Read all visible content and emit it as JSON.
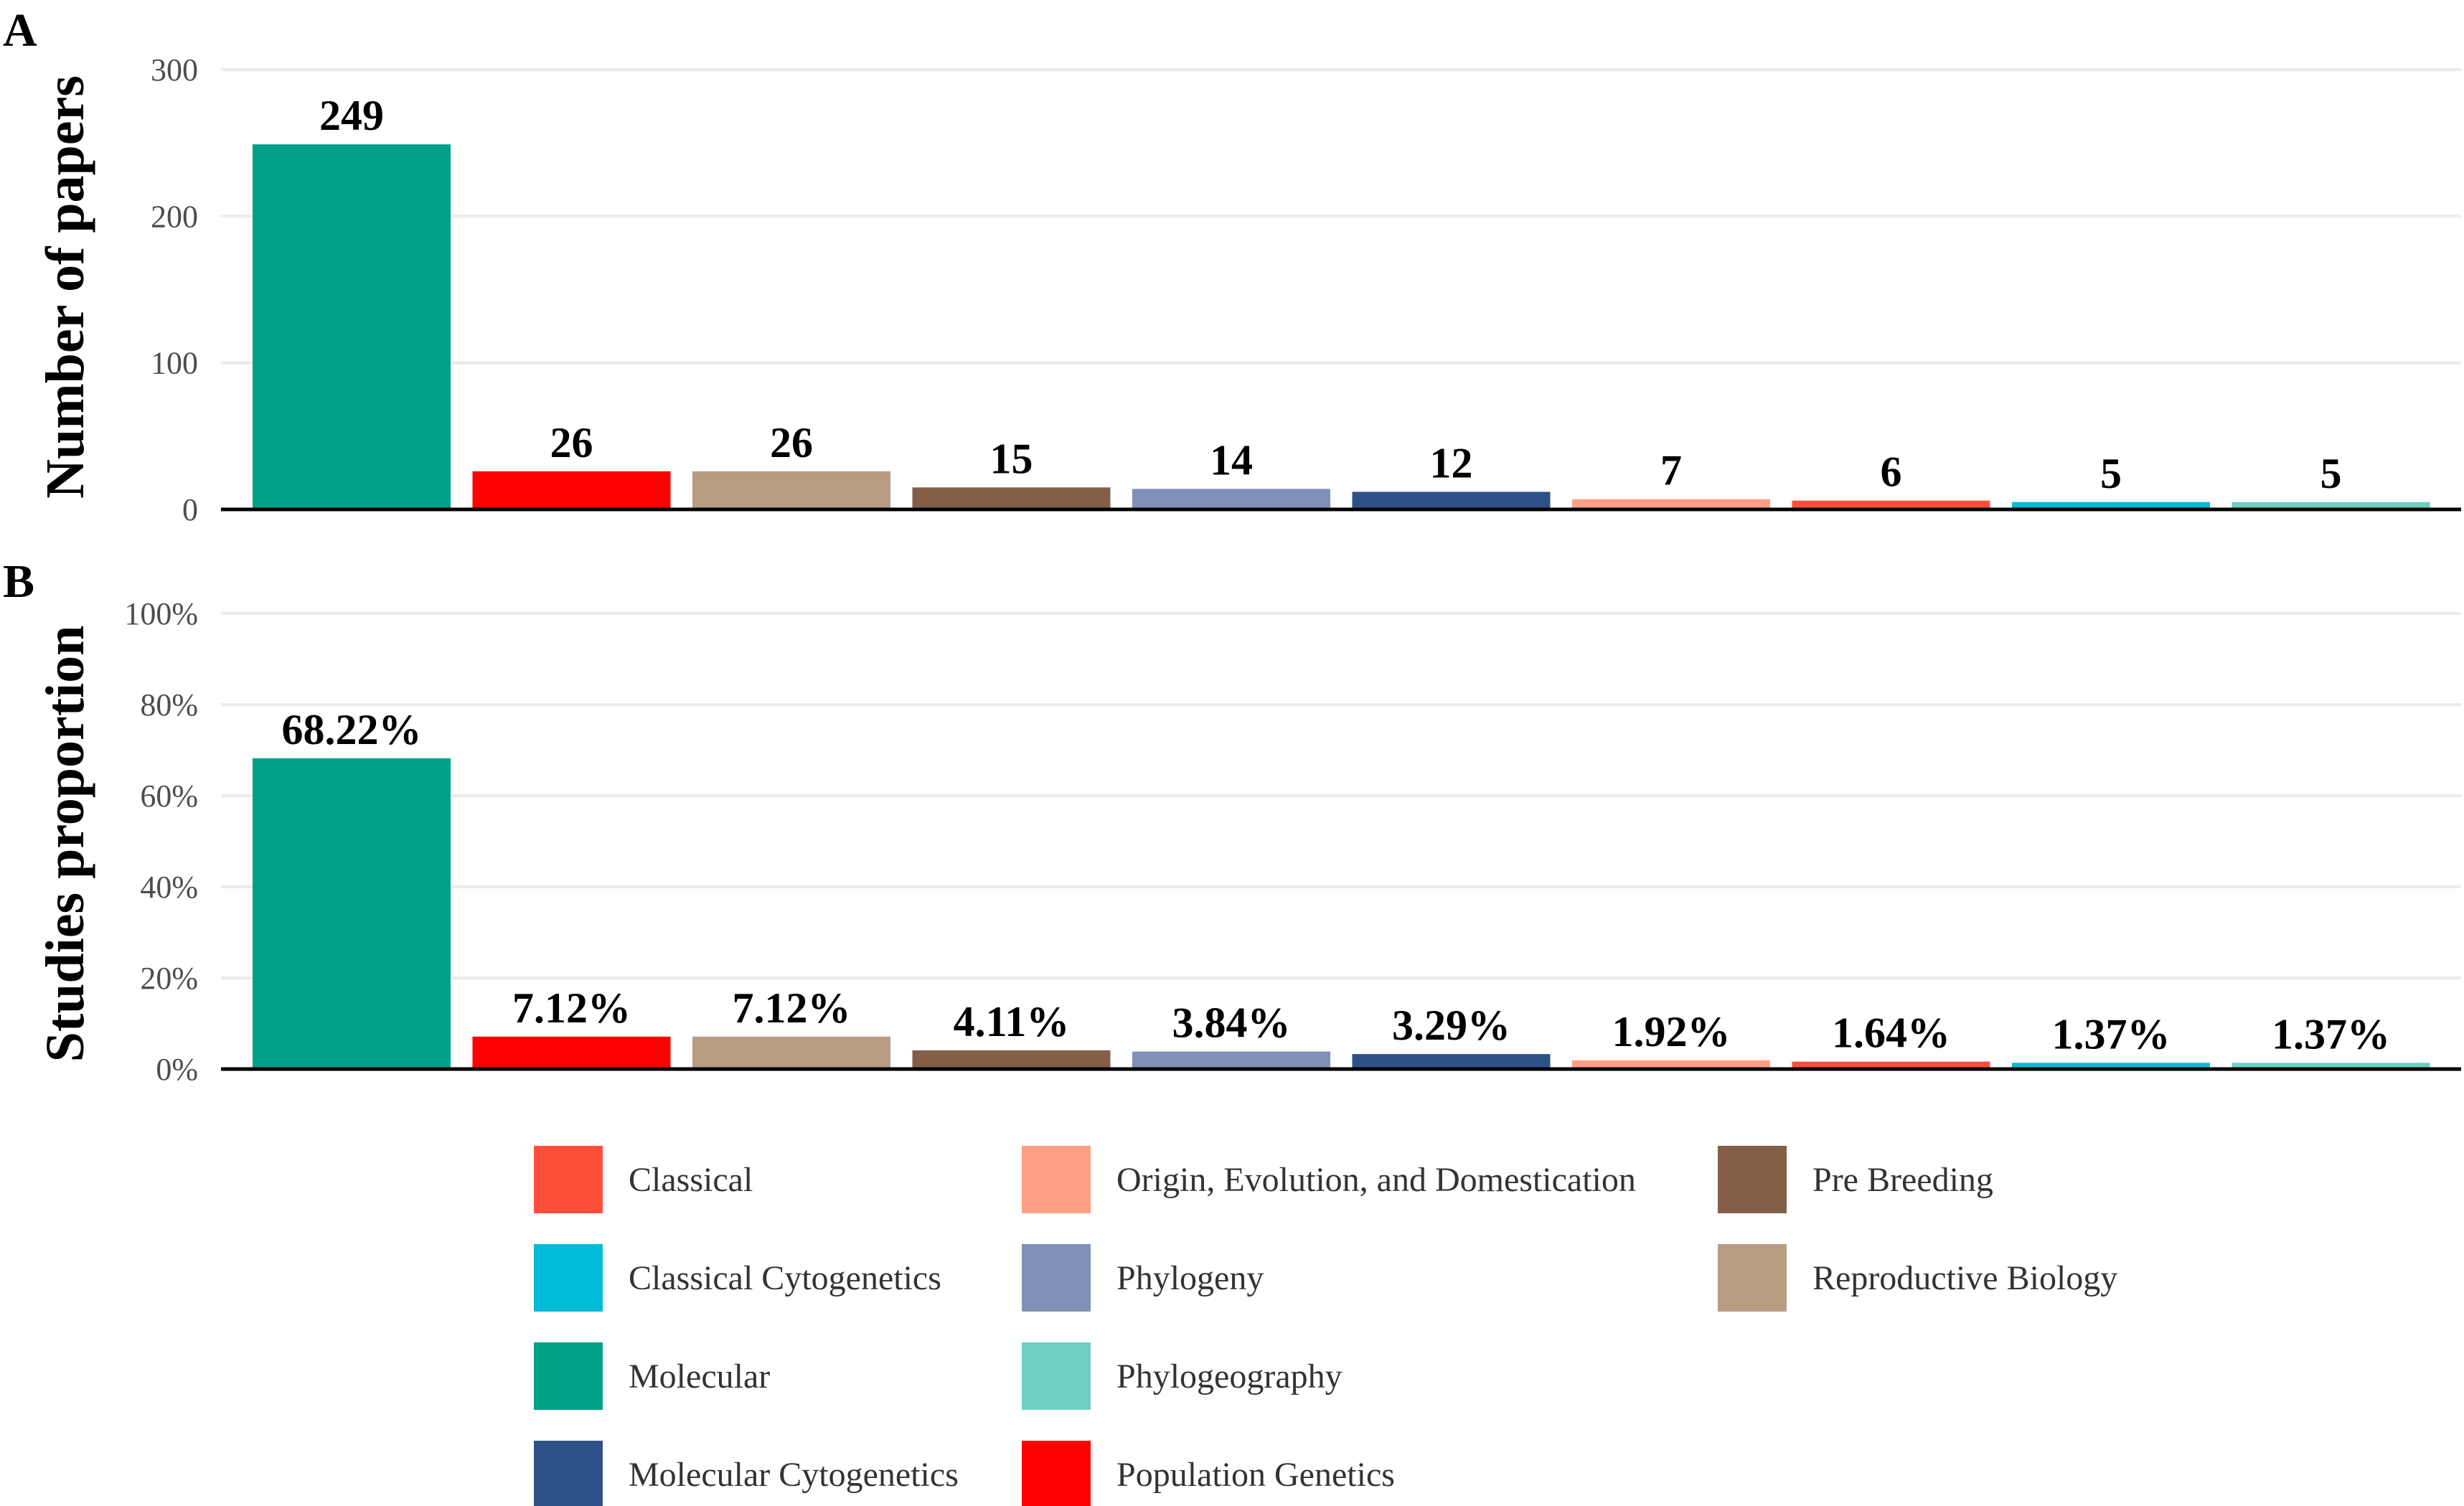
{
  "categories": [
    "Molecular",
    "Population Genetics",
    "Reproductive Biology",
    "Pre Breeding",
    "Phylogeny",
    "Molecular Cytogenetics",
    "Origin, Evolution, and Domestication",
    "Classical",
    "Classical Cytogenetics",
    "Phylogeography"
  ],
  "colors": {
    "Classical": "#FF4F3B",
    "Classical Cytogenetics": "#00BCD8",
    "Molecular": "#00A087",
    "Molecular Cytogenetics": "#2E5288",
    "Origin, Evolution, and Domestication": "#FF9F85",
    "Phylogeny": "#8091B8",
    "Phylogeography": "#6ED0C2",
    "Population Genetics": "#FF0000",
    "Pre Breeding": "#845F48",
    "Reproductive Biology": "#B89C82"
  },
  "chart_data": [
    {
      "type": "bar",
      "panel": "A",
      "ylabel": "Number of papers",
      "values": [
        249,
        26,
        26,
        15,
        14,
        12,
        7,
        6,
        5,
        5
      ],
      "data_labels": [
        "249",
        "26",
        "26",
        "15",
        "14",
        "12",
        "7",
        "6",
        "5",
        "5"
      ],
      "ylim": [
        0,
        300
      ],
      "yticks": [
        0,
        100,
        200,
        300
      ],
      "ytick_labels": [
        "0",
        "100",
        "200",
        "300"
      ],
      "grid": true
    },
    {
      "type": "bar",
      "panel": "B",
      "ylabel": "Studies proportion",
      "values": [
        68.22,
        7.12,
        7.12,
        4.11,
        3.84,
        3.29,
        1.92,
        1.64,
        1.37,
        1.37
      ],
      "data_labels": [
        "68.22%",
        "7.12%",
        "7.12%",
        "4.11%",
        "3.84%",
        "3.29%",
        "1.92%",
        "1.64%",
        "1.37%",
        "1.37%"
      ],
      "ylim": [
        0,
        100
      ],
      "yticks": [
        0,
        20,
        40,
        60,
        80,
        100
      ],
      "ytick_labels": [
        "0%",
        "20%",
        "40%",
        "60%",
        "80%",
        "100%"
      ],
      "grid": true
    }
  ],
  "legend": {
    "placement": "bottom",
    "columns": [
      [
        "Classical",
        "Classical Cytogenetics",
        "Molecular",
        "Molecular Cytogenetics"
      ],
      [
        "Origin, Evolution, and Domestication",
        "Phylogeny",
        "Phylogeography",
        "Population Genetics"
      ],
      [
        "Pre Breeding",
        "Reproductive Biology"
      ]
    ]
  }
}
